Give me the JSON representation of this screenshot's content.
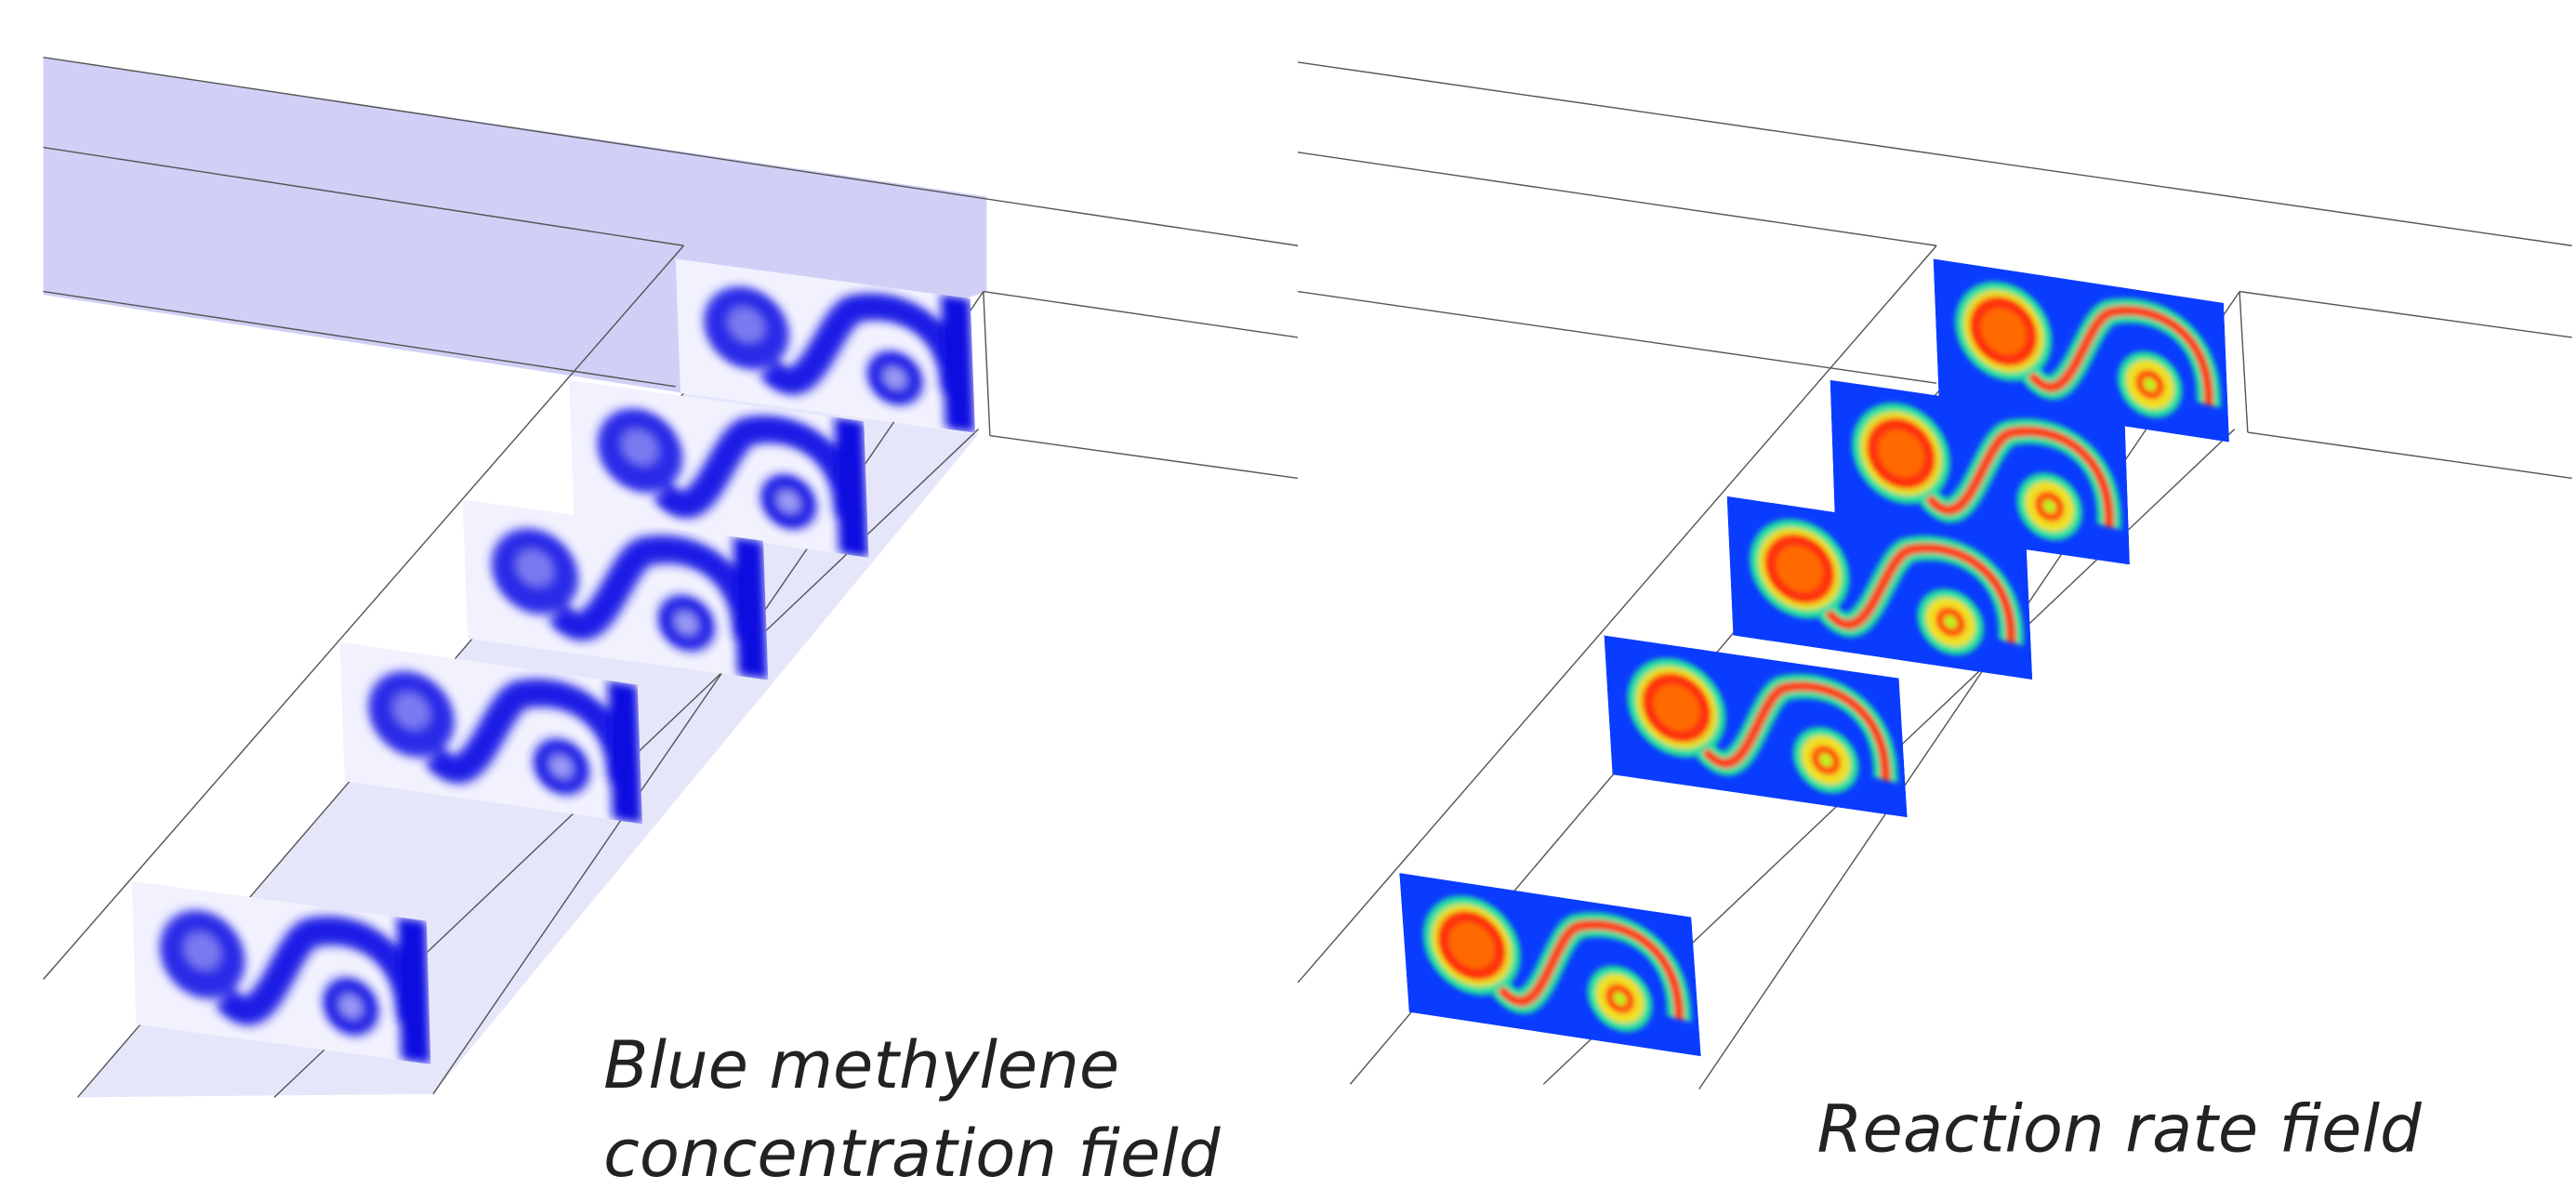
{
  "captions": {
    "left": [
      "Blue methylene",
      "concentration field"
    ],
    "right": "Reaction rate field"
  }
}
